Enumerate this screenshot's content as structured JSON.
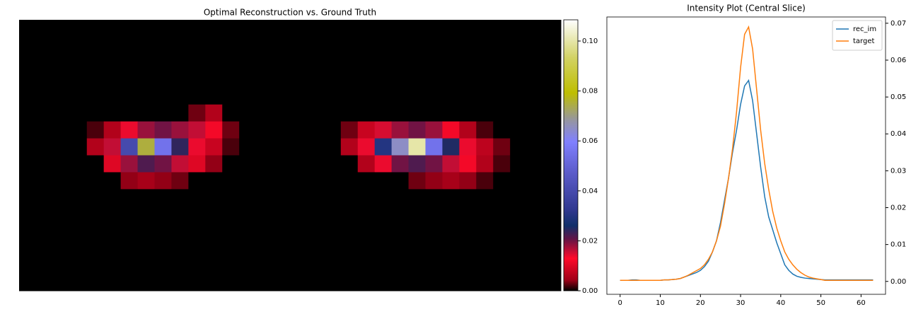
{
  "chart_data": [
    {
      "type": "heatmap",
      "title": "Optimal Reconstruction vs. Ground Truth",
      "values": [
        [
          0,
          0,
          0,
          0,
          0,
          0,
          0,
          0,
          0,
          0,
          0,
          0,
          0,
          0,
          0,
          0,
          0,
          0,
          0,
          0,
          0,
          0,
          0,
          0,
          0,
          0,
          0,
          0,
          0,
          0,
          0,
          0
        ],
        [
          0,
          0,
          0,
          0,
          0,
          0,
          0,
          0,
          0,
          0,
          0,
          0,
          0,
          0,
          0,
          0,
          0,
          0,
          0,
          0,
          0,
          0,
          0,
          0,
          0,
          0,
          0,
          0,
          0,
          0,
          0,
          0
        ],
        [
          0,
          0,
          0,
          0,
          0,
          0,
          0,
          0,
          0,
          0,
          0,
          0,
          0,
          0,
          0,
          0,
          0,
          0,
          0,
          0,
          0,
          0,
          0,
          0,
          0,
          0,
          0,
          0,
          0,
          0,
          0,
          0
        ],
        [
          0,
          0,
          0,
          0,
          0,
          0,
          0,
          0,
          0,
          0,
          0,
          0,
          0,
          0,
          0,
          0,
          0,
          0,
          0,
          0,
          0,
          0,
          0,
          0,
          0,
          0,
          0,
          0,
          0,
          0,
          0,
          0
        ],
        [
          0,
          0,
          0,
          0,
          0,
          0,
          0,
          0,
          0,
          0,
          0,
          0,
          0,
          0,
          0,
          0,
          0,
          0,
          0,
          0,
          0,
          0,
          0,
          0,
          0,
          0,
          0,
          0,
          0,
          0,
          0,
          0
        ],
        [
          0,
          0,
          0,
          0,
          0,
          0,
          0,
          0,
          0,
          0,
          0.003,
          0.006,
          0,
          0,
          0,
          0,
          0,
          0,
          0,
          0,
          0,
          0,
          0,
          0,
          0,
          0,
          0,
          0,
          0,
          0,
          0,
          0
        ],
        [
          0,
          0,
          0,
          0,
          0.002,
          0.006,
          0.014,
          0.018,
          0.02,
          0.018,
          0.016,
          0.012,
          0.003,
          0,
          0,
          0,
          0,
          0,
          0,
          0.003,
          0.008,
          0.015,
          0.018,
          0.02,
          0.018,
          0.012,
          0.006,
          0.002,
          0,
          0,
          0,
          0
        ],
        [
          0,
          0,
          0,
          0,
          0.006,
          0.016,
          0.04,
          0.075,
          0.055,
          0.024,
          0.014,
          0.008,
          0.002,
          0,
          0,
          0,
          0,
          0,
          0,
          0.006,
          0.014,
          0.03,
          0.065,
          0.1,
          0.055,
          0.025,
          0.014,
          0.007,
          0.003,
          0,
          0,
          0
        ],
        [
          0,
          0,
          0,
          0,
          0,
          0.01,
          0.018,
          0.022,
          0.02,
          0.016,
          0.01,
          0.004,
          0,
          0,
          0,
          0,
          0,
          0,
          0,
          0,
          0.006,
          0.014,
          0.02,
          0.022,
          0.02,
          0.016,
          0.012,
          0.006,
          0.002,
          0,
          0,
          0
        ],
        [
          0,
          0,
          0,
          0,
          0,
          0,
          0.004,
          0.005,
          0.004,
          0.003,
          0,
          0,
          0,
          0,
          0,
          0,
          0,
          0,
          0,
          0,
          0,
          0,
          0,
          0.003,
          0.004,
          0.005,
          0.004,
          0.002,
          0,
          0,
          0,
          0
        ],
        [
          0,
          0,
          0,
          0,
          0,
          0,
          0,
          0,
          0,
          0,
          0,
          0,
          0,
          0,
          0,
          0,
          0,
          0,
          0,
          0,
          0,
          0,
          0,
          0,
          0,
          0,
          0,
          0,
          0,
          0,
          0,
          0
        ],
        [
          0,
          0,
          0,
          0,
          0,
          0,
          0,
          0,
          0,
          0,
          0,
          0,
          0,
          0,
          0,
          0,
          0,
          0,
          0,
          0,
          0,
          0,
          0,
          0,
          0,
          0,
          0,
          0,
          0,
          0,
          0,
          0
        ],
        [
          0,
          0,
          0,
          0,
          0,
          0,
          0,
          0,
          0,
          0,
          0,
          0,
          0,
          0,
          0,
          0,
          0,
          0,
          0,
          0,
          0,
          0,
          0,
          0,
          0,
          0,
          0,
          0,
          0,
          0,
          0,
          0
        ],
        [
          0,
          0,
          0,
          0,
          0,
          0,
          0,
          0,
          0,
          0,
          0,
          0,
          0,
          0,
          0,
          0,
          0,
          0,
          0,
          0,
          0,
          0,
          0,
          0,
          0,
          0,
          0,
          0,
          0,
          0,
          0,
          0
        ],
        [
          0,
          0,
          0,
          0,
          0,
          0,
          0,
          0,
          0,
          0,
          0,
          0,
          0,
          0,
          0,
          0,
          0,
          0,
          0,
          0,
          0,
          0,
          0,
          0,
          0,
          0,
          0,
          0,
          0,
          0,
          0,
          0
        ],
        [
          0,
          0,
          0,
          0,
          0,
          0,
          0,
          0,
          0,
          0,
          0,
          0,
          0,
          0,
          0,
          0,
          0,
          0,
          0,
          0,
          0,
          0,
          0,
          0,
          0,
          0,
          0,
          0,
          0,
          0,
          0,
          0
        ]
      ],
      "clim": [
        0,
        0.1085
      ],
      "cticks": [
        {
          "value": 0,
          "label": "0.00"
        },
        {
          "value": 0.02,
          "label": "0.02"
        },
        {
          "value": 0.04,
          "label": "0.04"
        },
        {
          "value": 0.06,
          "label": "0.06"
        },
        {
          "value": 0.08,
          "label": "0.08"
        },
        {
          "value": 0.1,
          "label": "0.10"
        }
      ]
    },
    {
      "type": "line",
      "title": "Intensity Plot (Central Slice)",
      "x": [
        0,
        1,
        2,
        3,
        4,
        5,
        6,
        7,
        8,
        9,
        10,
        11,
        12,
        13,
        14,
        15,
        16,
        17,
        18,
        19,
        20,
        21,
        22,
        23,
        24,
        25,
        26,
        27,
        28,
        29,
        30,
        31,
        32,
        33,
        34,
        35,
        36,
        37,
        38,
        39,
        40,
        41,
        42,
        43,
        44,
        45,
        46,
        47,
        48,
        49,
        50,
        51,
        52,
        53,
        54,
        55,
        56,
        57,
        58,
        59,
        60,
        61,
        62,
        63
      ],
      "series": [
        {
          "name": "rec_im",
          "color": "#1f77b4",
          "values": [
            0.0003,
            0.0003,
            0.0003,
            0.0004,
            0.0004,
            0.0003,
            0.0003,
            0.0003,
            0.0003,
            0.0003,
            0.0003,
            0.0004,
            0.0004,
            0.0005,
            0.0006,
            0.0008,
            0.0012,
            0.0016,
            0.002,
            0.0024,
            0.003,
            0.004,
            0.0055,
            0.008,
            0.011,
            0.016,
            0.022,
            0.028,
            0.035,
            0.041,
            0.048,
            0.053,
            0.0545,
            0.049,
            0.04,
            0.031,
            0.023,
            0.0175,
            0.014,
            0.0105,
            0.0075,
            0.0045,
            0.003,
            0.002,
            0.0014,
            0.0011,
            0.0009,
            0.0008,
            0.0007,
            0.0006,
            0.0005,
            0.0004,
            0.0004,
            0.0004,
            0.0004,
            0.0004,
            0.0004,
            0.0004,
            0.0004,
            0.0004,
            0.0004,
            0.0004,
            0.0004,
            0.0004
          ]
        },
        {
          "name": "target",
          "color": "#ff7f0e",
          "values": [
            0.0003,
            0.0003,
            0.0003,
            0.0003,
            0.0003,
            0.0003,
            0.0003,
            0.0003,
            0.0003,
            0.0003,
            0.0003,
            0.0004,
            0.0004,
            0.0005,
            0.0006,
            0.0008,
            0.0012,
            0.0017,
            0.0023,
            0.0029,
            0.0035,
            0.0045,
            0.006,
            0.008,
            0.011,
            0.015,
            0.021,
            0.028,
            0.036,
            0.046,
            0.058,
            0.067,
            0.069,
            0.063,
            0.052,
            0.041,
            0.032,
            0.025,
            0.019,
            0.0145,
            0.011,
            0.008,
            0.006,
            0.0045,
            0.0033,
            0.0024,
            0.0017,
            0.0012,
            0.0009,
            0.0007,
            0.0005,
            0.0003,
            0.0003,
            0.0003,
            0.0003,
            0.0003,
            0.0003,
            0.0003,
            0.0003,
            0.0003,
            0.0003,
            0.0003,
            0.0003,
            0.0003
          ]
        }
      ],
      "xlim": [
        -3.3,
        66.1
      ],
      "xticks": [
        0,
        10,
        20,
        30,
        40,
        50,
        60
      ],
      "ylim": [
        -0.0035,
        0.0717
      ],
      "yticks": [
        {
          "value": 0,
          "label": "0.00"
        },
        {
          "value": 0.01,
          "label": "0.01"
        },
        {
          "value": 0.02,
          "label": "0.02"
        },
        {
          "value": 0.03,
          "label": "0.03"
        },
        {
          "value": 0.04,
          "label": "0.04"
        },
        {
          "value": 0.05,
          "label": "0.05"
        },
        {
          "value": 0.06,
          "label": "0.06"
        },
        {
          "value": 0.07,
          "label": "0.07"
        }
      ],
      "legend": "upper right"
    }
  ]
}
